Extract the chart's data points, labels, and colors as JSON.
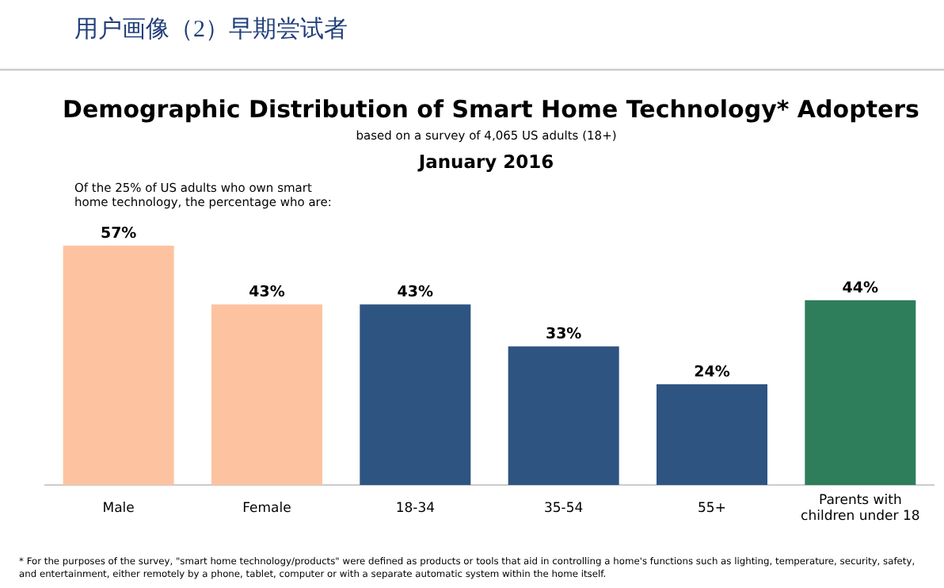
{
  "chart_data": {
    "type": "bar",
    "title": "Demographic Distribution of Smart Home Technology* Adopters",
    "subtitle": [
      "用户画像（2）早期尝试者",
      "based on a survey of 4,065 US adults (18+)",
      "January 2016"
    ],
    "annotations": [
      "Of the 25% of US adults who own smart home technology, the percentage who are:",
      "* For the purposes of the survey, \"smart home technology/products\" were defined as products or tools that aid in controlling a home's functions such as lighting, temperature, security, safety, and entertainment, either remotely by a phone, tablet, computer or with a separate automatic system within the home itself."
    ],
    "categories": [
      "Male",
      "Female",
      "18-34",
      "35-54",
      "55+",
      "Parents with children under 18"
    ],
    "values": [
      57,
      43,
      43,
      33,
      24,
      44
    ],
    "colors": [
      "#fdc3a0",
      "#fdc3a0",
      "#2e5482",
      "#2e5482",
      "#2e5482",
      "#2e7d5b"
    ],
    "value_labels": [
      "57%",
      "43%",
      "43%",
      "33%",
      "24%",
      "44%"
    ]
  }
}
